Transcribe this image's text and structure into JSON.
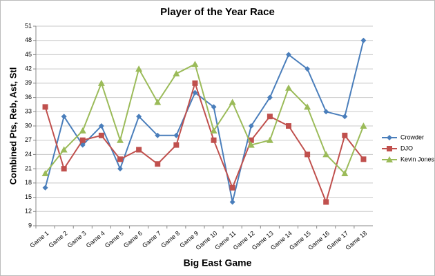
{
  "chart_data": {
    "type": "line",
    "title": "Player of the Year Race",
    "x_label": "Big East Game",
    "y_label": "Combined Pts, Reb, Ast, Stl",
    "categories": [
      "Game 1",
      "Game 2",
      "Game 3",
      "Game 4",
      "Game 5",
      "Game 6",
      "Game 7",
      "Game 8",
      "Game 9",
      "Game 10",
      "Game 11",
      "Game 12",
      "Game 13",
      "Game 14",
      "Game 15",
      "Game 16",
      "Game 17",
      "Game 18"
    ],
    "series": [
      {
        "name": "Crowder",
        "color": "#4a7ebb",
        "marker": "diamond",
        "values": [
          17,
          32,
          26,
          30,
          21,
          32,
          28,
          28,
          37,
          34,
          14,
          30,
          36,
          45,
          42,
          33,
          32,
          48
        ]
      },
      {
        "name": "DJO",
        "color": "#c0504d",
        "marker": "square",
        "values": [
          34,
          21,
          27,
          28,
          23,
          25,
          22,
          26,
          39,
          27,
          17,
          27,
          32,
          30,
          24,
          14,
          28,
          23
        ]
      },
      {
        "name": "Kevin Jones",
        "color": "#9bbb59",
        "marker": "triangle",
        "values": [
          20,
          25,
          29,
          39,
          27,
          42,
          35,
          41,
          43,
          29,
          35,
          26,
          27,
          38,
          34,
          24,
          20,
          30
        ]
      }
    ],
    "ylim": [
      9,
      51
    ],
    "yticks": [
      9,
      12,
      15,
      18,
      21,
      24,
      27,
      30,
      33,
      36,
      39,
      42,
      45,
      48,
      51
    ],
    "grid": true,
    "legend": "right"
  }
}
